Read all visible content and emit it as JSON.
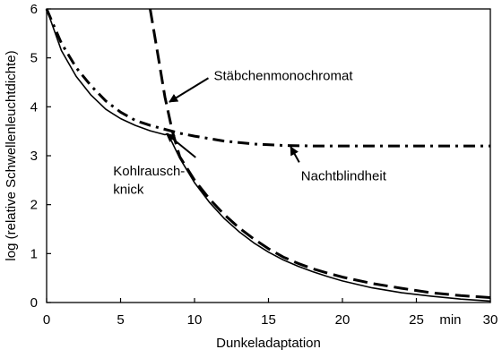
{
  "chart_data": {
    "type": "line",
    "xlabel": "Dunkeladaptation",
    "ylabel": "log (relative Schwellenleuchtdichte)",
    "x_unit_label": "min",
    "xlim": [
      0,
      30
    ],
    "ylim": [
      0,
      6
    ],
    "x_ticks": [
      0,
      5,
      10,
      15,
      20,
      25,
      30
    ],
    "y_ticks": [
      0,
      1,
      2,
      3,
      4,
      5,
      6
    ],
    "grid": false,
    "legend": "none",
    "series": [
      {
        "id": "normal",
        "style": "solid",
        "points": [
          [
            0,
            6
          ],
          [
            1,
            5.15
          ],
          [
            2,
            4.62
          ],
          [
            3,
            4.24
          ],
          [
            4,
            3.95
          ],
          [
            5,
            3.76
          ],
          [
            6,
            3.62
          ],
          [
            7,
            3.51
          ],
          [
            8,
            3.43
          ],
          [
            8.2,
            3.45
          ],
          [
            9,
            2.95
          ],
          [
            10,
            2.45
          ],
          [
            11,
            2.05
          ],
          [
            12,
            1.72
          ],
          [
            13,
            1.45
          ],
          [
            14,
            1.22
          ],
          [
            15,
            1.03
          ],
          [
            16,
            0.87
          ],
          [
            17,
            0.74
          ],
          [
            18,
            0.63
          ],
          [
            19,
            0.53
          ],
          [
            20,
            0.44
          ],
          [
            22,
            0.3
          ],
          [
            24,
            0.2
          ],
          [
            26,
            0.13
          ],
          [
            28,
            0.07
          ],
          [
            30,
            0.03
          ]
        ]
      },
      {
        "id": "staebchenmonochromat",
        "style": "dashed",
        "points": [
          [
            7,
            6
          ],
          [
            7.5,
            5.1
          ],
          [
            8,
            4.2
          ],
          [
            8.5,
            3.5
          ],
          [
            9,
            2.98
          ],
          [
            10,
            2.5
          ],
          [
            11,
            2.12
          ],
          [
            12,
            1.8
          ],
          [
            13,
            1.53
          ],
          [
            14,
            1.3
          ],
          [
            15,
            1.1
          ],
          [
            16,
            0.93
          ],
          [
            17,
            0.8
          ],
          [
            18,
            0.69
          ],
          [
            19,
            0.6
          ],
          [
            20,
            0.52
          ],
          [
            22,
            0.39
          ],
          [
            24,
            0.29
          ],
          [
            26,
            0.2
          ],
          [
            28,
            0.14
          ],
          [
            30,
            0.1
          ]
        ]
      },
      {
        "id": "nachtblindheit",
        "style": "dash-dot",
        "points": [
          [
            0,
            6
          ],
          [
            1,
            5.3
          ],
          [
            2,
            4.8
          ],
          [
            3,
            4.43
          ],
          [
            4,
            4.12
          ],
          [
            5,
            3.89
          ],
          [
            6,
            3.72
          ],
          [
            7,
            3.62
          ],
          [
            8,
            3.54
          ],
          [
            9,
            3.46
          ],
          [
            10,
            3.4
          ],
          [
            12,
            3.3
          ],
          [
            14,
            3.24
          ],
          [
            16,
            3.21
          ],
          [
            18,
            3.2
          ],
          [
            20,
            3.2
          ],
          [
            25,
            3.2
          ],
          [
            30,
            3.2
          ]
        ]
      }
    ],
    "annotations": [
      {
        "text": "Stäbchenmonochromat",
        "text_at": [
          11.3,
          4.55
        ],
        "arrow_tip": [
          8.3,
          4.1
        ]
      },
      {
        "text": "Nachtblindheit",
        "text_at": [
          17.2,
          2.5
        ],
        "arrow_tip": [
          16.5,
          3.18
        ]
      },
      {
        "text": "Kohlrausch-",
        "text_at": [
          4.5,
          2.6
        ],
        "arrow_tip": [
          8.1,
          3.45
        ]
      },
      {
        "text": "knick",
        "text_at": [
          4.5,
          2.22
        ]
      }
    ]
  }
}
